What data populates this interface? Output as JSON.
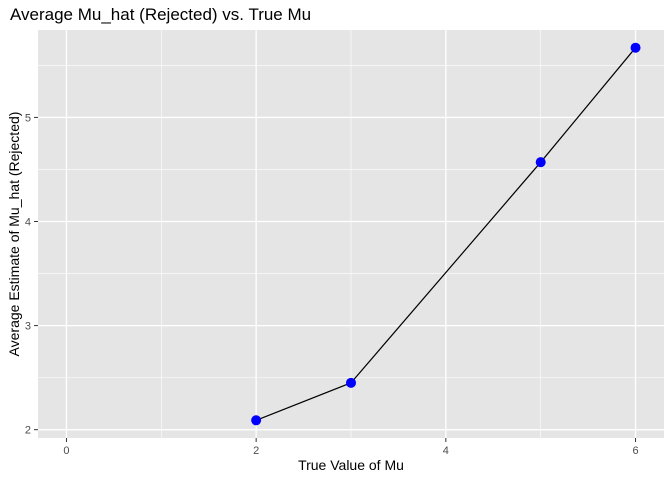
{
  "chart_data": {
    "type": "line",
    "title": "Average Mu_hat (Rejected) vs. True Mu",
    "xlabel": "True Value of Mu",
    "ylabel": "Average Estimate of Mu_hat (Rejected)",
    "xlim": [
      -0.3,
      6.3
    ],
    "ylim": [
      1.92,
      5.84
    ],
    "x_ticks": [
      0,
      2,
      4,
      6
    ],
    "y_ticks": [
      2,
      3,
      4,
      5
    ],
    "x_tick_labels": [
      "0",
      "2",
      "4",
      "6"
    ],
    "y_tick_labels": [
      "2",
      "3",
      "4",
      "5"
    ],
    "x": [
      2,
      3,
      5,
      6
    ],
    "y": [
      2.09,
      2.45,
      4.57,
      5.67
    ],
    "grid": true,
    "colors": {
      "panel": "#e5e5e5",
      "grid": "#ffffff",
      "line": "#000000",
      "point": "#0000ff"
    }
  }
}
